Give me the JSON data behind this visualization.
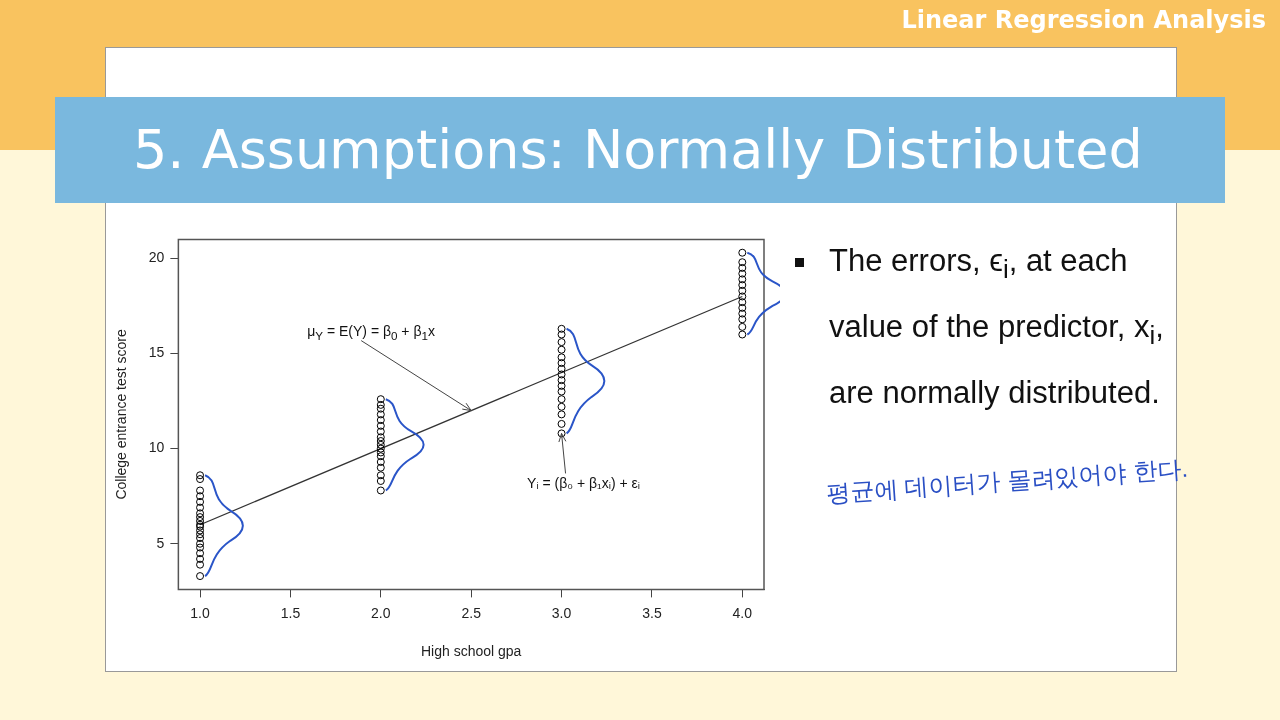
{
  "chart_data": {
    "type": "scatter",
    "title": "5. Assumptions: Normally Distributed",
    "subtitle": "Linear Regression Analysis",
    "xlabel": "High school gpa",
    "ylabel": "College entrance test score",
    "xlim": [
      0.88,
      4.12
    ],
    "ylim": [
      2.6,
      21.0
    ],
    "xticks": [
      {
        "value": 1,
        "label": "1.0"
      },
      {
        "value": 1.5,
        "label": "1.5"
      },
      {
        "value": 2,
        "label": "2.0"
      },
      {
        "value": 2.5,
        "label": "2.5"
      },
      {
        "value": 3,
        "label": "3.0"
      },
      {
        "value": 3.5,
        "label": "3.5"
      },
      {
        "value": 4,
        "label": "4.0"
      }
    ],
    "yticks": [
      5,
      10,
      15,
      20
    ],
    "grid": false,
    "legend": false,
    "marker": "circle",
    "series": [
      {
        "type": "scatter",
        "color": "#000000",
        "x": [
          1,
          1,
          1,
          1,
          1,
          1,
          1,
          1,
          1,
          1,
          1,
          1,
          1,
          1,
          1,
          1,
          1,
          1,
          1,
          1,
          2,
          2,
          2,
          2,
          2,
          2,
          2,
          2,
          2,
          2,
          2,
          2,
          2,
          2,
          2,
          2,
          2,
          2,
          3,
          3,
          3,
          3,
          3,
          3,
          3,
          3,
          3,
          3,
          3,
          3,
          3,
          3,
          3,
          3,
          4,
          4,
          4,
          4,
          4,
          4,
          4,
          4,
          4,
          4,
          4,
          4,
          4,
          4
        ],
        "values": [
          3.3,
          3.9,
          4.2,
          4.5,
          4.8,
          5.0,
          5.3,
          5.5,
          5.7,
          5.9,
          6.0,
          6.2,
          6.4,
          6.6,
          6.9,
          7.2,
          7.5,
          7.8,
          8.4,
          8.6,
          7.8,
          8.3,
          8.6,
          9.0,
          9.3,
          9.6,
          9.8,
          10.0,
          10.2,
          10.4,
          10.6,
          10.9,
          11.2,
          11.5,
          11.8,
          12.1,
          12.3,
          12.6,
          10.8,
          11.3,
          11.8,
          12.2,
          12.6,
          13.0,
          13.3,
          13.6,
          13.9,
          14.2,
          14.5,
          14.8,
          15.2,
          15.6,
          16.0,
          16.3,
          16.0,
          16.4,
          16.8,
          17.1,
          17.4,
          17.7,
          18.0,
          18.3,
          18.6,
          18.9,
          19.2,
          19.5,
          19.8,
          20.3
        ]
      },
      {
        "type": "line",
        "color": "#333333",
        "marker": "none",
        "x": [
          1,
          4
        ],
        "values": [
          6,
          18
        ]
      }
    ],
    "annotations": [
      {
        "text": "μ$_{Y}$ = E(Y) = β$_{0}$ + β$_{1}$x",
        "x": 2.5,
        "y": 12
      },
      {
        "text": "Yᵢ = (β₀ + β₁xᵢ) + εᵢ",
        "x": 3.0,
        "y": 10.8
      },
      "The errors, ϵ$_{i}$, at each value of the predictor, x$_{i}$, are normally distributed.",
      "평균에 데이터가 몰려있어야 한다."
    ]
  }
}
